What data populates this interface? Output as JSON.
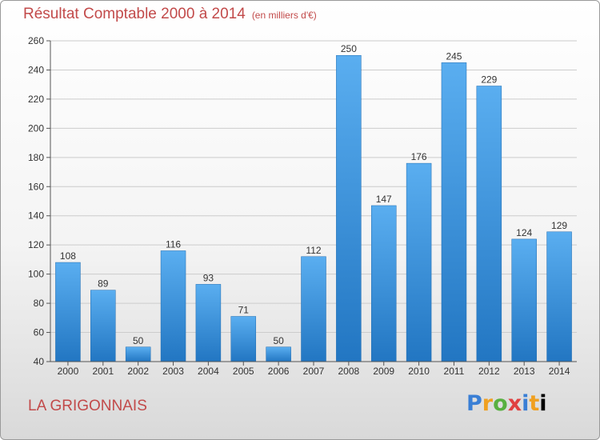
{
  "header": {
    "title": "Résultat Comptable 2000 à 2014",
    "unit": "(en milliers d'€)"
  },
  "commune": "LA GRIGONNAIS",
  "brand": {
    "letters": [
      "P",
      "r",
      "o",
      "x",
      "i",
      "t",
      "i"
    ]
  },
  "colors": {
    "bar_top": "#5aaef0",
    "bar_bottom": "#2276c2",
    "title": "#c24a4a",
    "grid": "#cccccc"
  },
  "chart_data": {
    "type": "bar",
    "title": "Résultat Comptable 2000 à 2014",
    "xlabel": "",
    "ylabel": "",
    "categories": [
      "2000",
      "2001",
      "2002",
      "2003",
      "2004",
      "2005",
      "2006",
      "2007",
      "2008",
      "2009",
      "2010",
      "2011",
      "2012",
      "2013",
      "2014"
    ],
    "values": [
      108,
      89,
      50,
      116,
      93,
      71,
      50,
      112,
      250,
      147,
      176,
      245,
      229,
      124,
      129
    ],
    "ylim": [
      40,
      260
    ],
    "yticks": [
      40,
      60,
      80,
      100,
      120,
      140,
      160,
      180,
      200,
      220,
      240,
      260
    ],
    "grid": true,
    "legend": "none",
    "data_labels": true
  }
}
